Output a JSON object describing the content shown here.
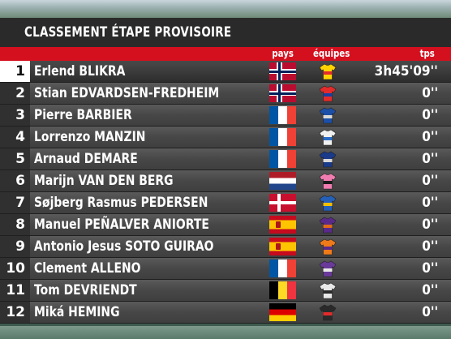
{
  "title": "CLASSEMENT ÉTAPE PROVISOIRE",
  "headers": {
    "pays": "pays",
    "equipes": "équipes",
    "tps": "tps"
  },
  "colors": {
    "header_red": "#d4101f",
    "title_bg": "#2a2a2a"
  },
  "rows": [
    {
      "rank": "1",
      "name": "Erlend BLIKRA",
      "flag": "norway-flag",
      "jersey": [
        "#ffd400",
        "#e32b2b"
      ],
      "time": "3h45'09''"
    },
    {
      "rank": "2",
      "name": "Stian EDVARDSEN-FREDHEIM",
      "flag": "norway-flag",
      "jersey": [
        "#e32b2b",
        "#1a3fa0"
      ],
      "time": "0''"
    },
    {
      "rank": "3",
      "name": "Pierre BARBIER",
      "flag": "france-flag",
      "jersey": [
        "#1c4fa8",
        "#d8d8d8"
      ],
      "time": "0''"
    },
    {
      "rank": "4",
      "name": "Lorrenzo MANZIN",
      "flag": "france-flag",
      "jersey": [
        "#f0f0f0",
        "#2a6cc8"
      ],
      "time": "0''"
    },
    {
      "rank": "5",
      "name": "Arnaud DEMARE",
      "flag": "france-flag",
      "jersey": [
        "#1a3a8a",
        "#d8d8d8"
      ],
      "time": "0''"
    },
    {
      "rank": "6",
      "name": "Marijn VAN DEN BERG",
      "flag": "netherlands-flag",
      "jersey": [
        "#f07cb0",
        "#1a1a1a"
      ],
      "time": "0''"
    },
    {
      "rank": "7",
      "name": "Søjberg Rasmus PEDERSEN",
      "flag": "denmark-flag",
      "jersey": [
        "#2460b8",
        "#f0c000"
      ],
      "time": "0''"
    },
    {
      "rank": "8",
      "name": "Manuel PEÑALVER ANIORTE",
      "flag": "spain-flag",
      "jersey": [
        "#5a2a8a",
        "#e06a1a"
      ],
      "time": "0''"
    },
    {
      "rank": "9",
      "name": "Antonio Jesus SOTO GUIRAO",
      "flag": "spain-flag",
      "jersey": [
        "#ee7a1a",
        "#5a2a8a"
      ],
      "time": "0''"
    },
    {
      "rank": "10",
      "name": "Clement ALLENO",
      "flag": "france-flag",
      "jersey": [
        "#6a3a9a",
        "#e8e8e8"
      ],
      "time": "0''"
    },
    {
      "rank": "11",
      "name": "Tom DEVRIENDT",
      "flag": "belgium-flag",
      "jersey": [
        "#e8e8e8",
        "#2a2a2a"
      ],
      "time": "0''"
    },
    {
      "rank": "12",
      "name": "Miká HEMING",
      "flag": "germany-flag",
      "jersey": [
        "#2a2a2a",
        "#e32b2b"
      ],
      "time": "0''"
    }
  ]
}
